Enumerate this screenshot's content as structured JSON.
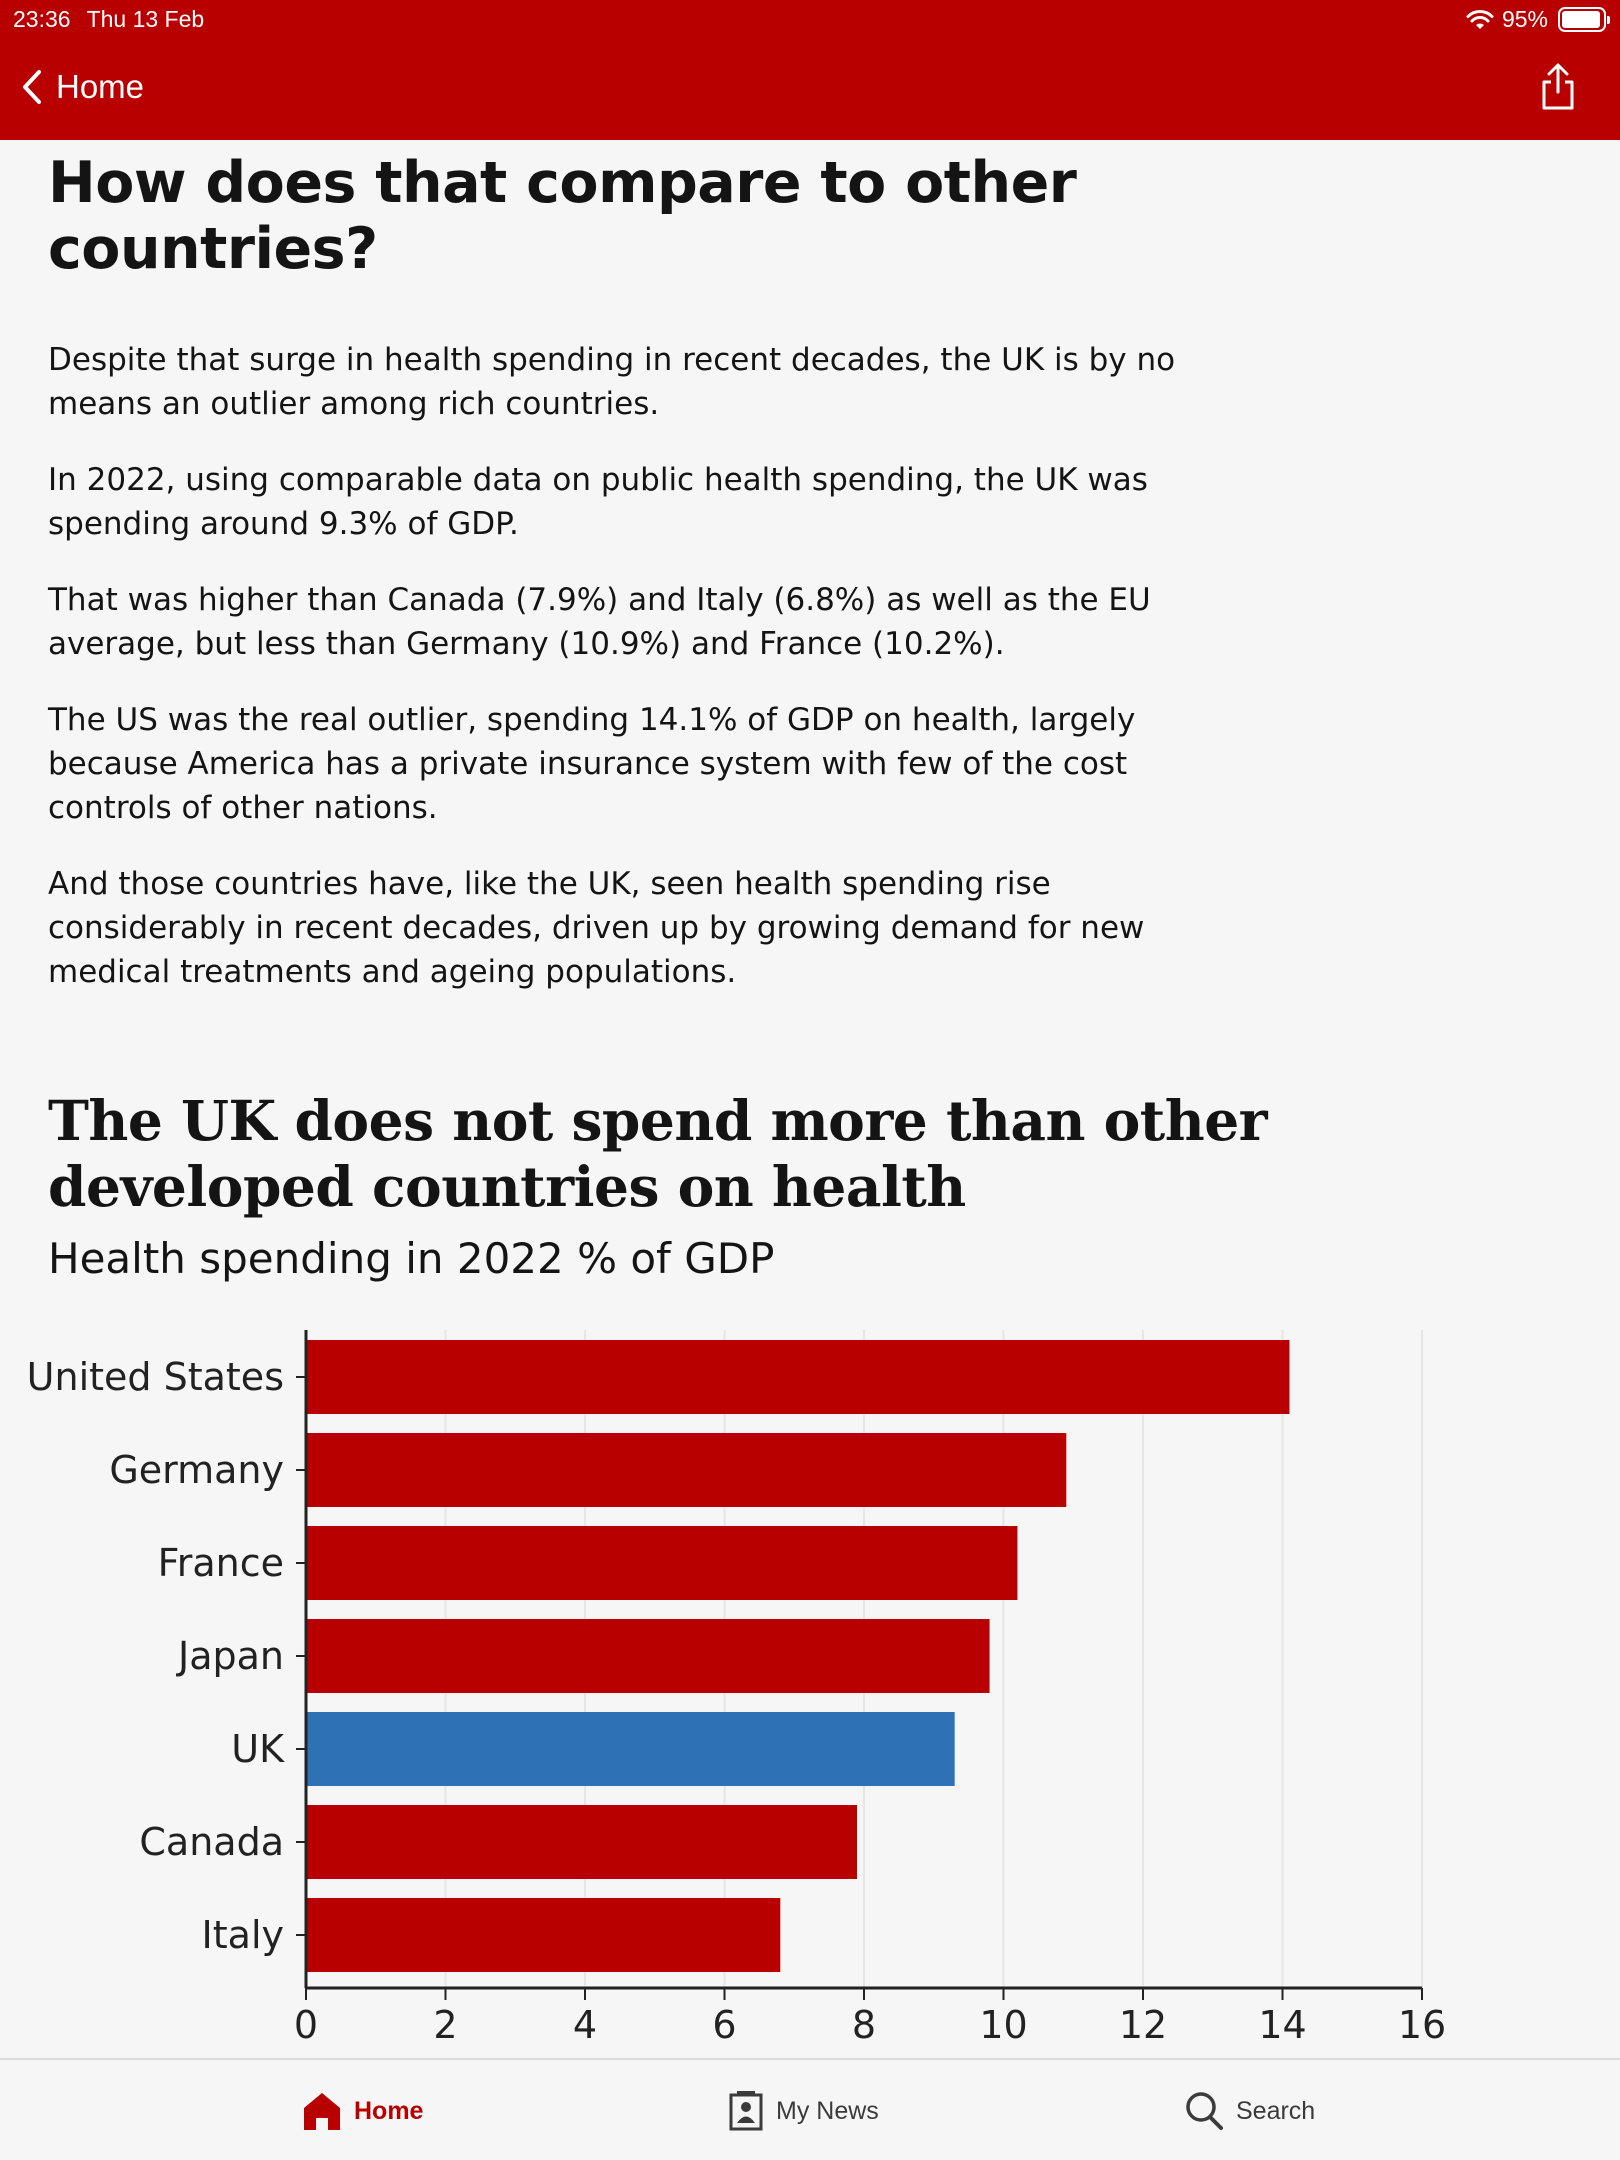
{
  "status_bar": {
    "time": "23:36",
    "date": "Thu 13 Feb",
    "battery": "95%",
    "battery_level": 0.95
  },
  "nav": {
    "back_label": "Home",
    "back_icon": "chevron-left-icon",
    "share_icon": "share-icon"
  },
  "article": {
    "heading": "How does that compare to other countries?",
    "paragraphs": [
      "Despite that surge in health spending in recent decades, the UK is by no means an outlier among rich countries.",
      "In 2022, using comparable data on public health spending, the UK was spending around 9.3% of GDP.",
      "That was higher than Canada (7.9%) and Italy (6.8%) as well as the EU average, but less than Germany (10.9%) and France (10.2%).",
      "The US was the real outlier, spending 14.1% of GDP on health, largely because America has a private insurance system with few of the cost controls of other nations.",
      "And those countries have, like the UK, seen health spending rise considerably in recent decades, driven up by growing demand for new medical treatments and ageing populations."
    ]
  },
  "chart_data": {
    "type": "bar",
    "orientation": "horizontal",
    "title": "The UK does not spend more than other developed countries on health",
    "subtitle": "Health spending in 2022 % of GDP",
    "categories": [
      "United States",
      "Germany",
      "France",
      "Japan",
      "UK",
      "Canada",
      "Italy"
    ],
    "values": [
      14.1,
      10.9,
      10.2,
      9.8,
      9.3,
      7.9,
      6.8
    ],
    "xlim": [
      0,
      16
    ],
    "xticks": [
      0,
      2,
      4,
      6,
      8,
      10,
      12,
      14,
      16
    ],
    "grid": true,
    "colors": {
      "default": "#b80000",
      "highlight": "#2e72b5"
    },
    "highlight": "UK"
  },
  "tabs": [
    {
      "label": "Home",
      "icon": "home-icon",
      "active": true
    },
    {
      "label": "My News",
      "icon": "my-news-icon",
      "active": false
    },
    {
      "label": "Search",
      "icon": "search-icon",
      "active": false
    }
  ]
}
